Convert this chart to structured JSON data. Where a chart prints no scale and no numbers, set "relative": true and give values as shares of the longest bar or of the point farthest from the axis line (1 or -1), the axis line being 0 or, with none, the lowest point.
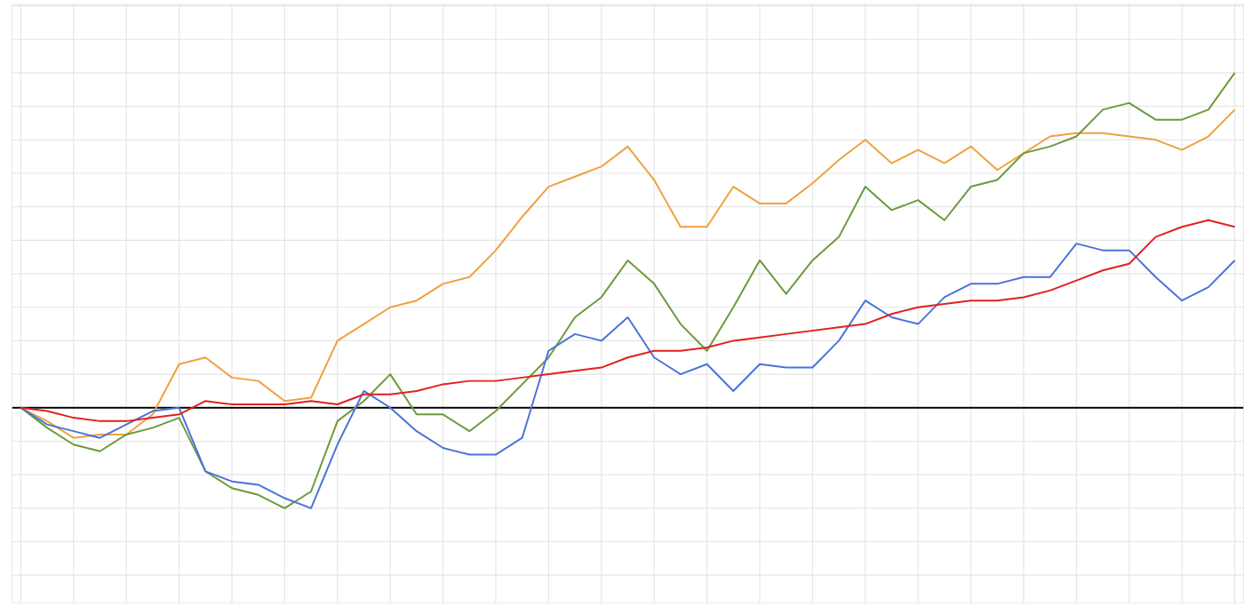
{
  "chart_data": {
    "type": "line",
    "relative": true,
    "grid": true,
    "marker": "none",
    "line_style": "solid",
    "categories": [
      null,
      null,
      null,
      null,
      null,
      null,
      null,
      null,
      null,
      null,
      null,
      null,
      null,
      null,
      null,
      null,
      null,
      null,
      null,
      null,
      null,
      null,
      null,
      null,
      null,
      null,
      null,
      null,
      null,
      null,
      null,
      null,
      null,
      null,
      null,
      null,
      null,
      null,
      null,
      null,
      null,
      null,
      null,
      null,
      null,
      null,
      null
    ],
    "series": [
      {
        "color": "#f0a040",
        "values": [
          0,
          -0.04,
          -0.09,
          -0.08,
          -0.08,
          -0.02,
          0.13,
          0.15,
          0.09,
          0.08,
          0.02,
          0.03,
          0.2,
          0.25,
          0.3,
          0.32,
          0.37,
          0.39,
          0.47,
          0.57,
          0.66,
          0.69,
          0.72,
          0.78,
          0.68,
          0.54,
          0.54,
          0.66,
          0.61,
          0.61,
          0.67,
          0.74,
          0.8,
          0.73,
          0.77,
          0.73,
          0.78,
          0.71,
          0.76,
          0.81,
          0.82,
          0.82,
          0.81,
          0.8,
          0.77,
          0.81,
          0.89
        ]
      },
      {
        "color": "#6a9a3a",
        "values": [
          0,
          -0.06,
          -0.11,
          -0.13,
          -0.08,
          -0.06,
          -0.03,
          -0.19,
          -0.24,
          -0.26,
          -0.3,
          -0.25,
          -0.04,
          0.02,
          0.1,
          -0.02,
          -0.02,
          -0.07,
          -0.01,
          0.07,
          0.15,
          0.27,
          0.33,
          0.44,
          0.37,
          0.25,
          0.17,
          0.3,
          0.44,
          0.34,
          0.44,
          0.51,
          0.66,
          0.59,
          0.62,
          0.56,
          0.66,
          0.68,
          0.76,
          0.78,
          0.81,
          0.89,
          0.91,
          0.86,
          0.86,
          0.89,
          1
        ]
      },
      {
        "color": "#4a72d8",
        "values": [
          0,
          -0.05,
          -0.07,
          -0.09,
          -0.05,
          -0.01,
          0,
          -0.19,
          -0.22,
          -0.23,
          -0.27,
          -0.3,
          -0.11,
          0.05,
          0,
          -0.07,
          -0.12,
          -0.14,
          -0.14,
          -0.09,
          0.17,
          0.22,
          0.2,
          0.27,
          0.15,
          0.1,
          0.13,
          0.05,
          0.13,
          0.12,
          0.12,
          0.2,
          0.32,
          0.27,
          0.25,
          0.33,
          0.37,
          0.37,
          0.39,
          0.39,
          0.49,
          0.47,
          0.47,
          0.39,
          0.32,
          0.36,
          0.44
        ]
      },
      {
        "color": "#e02020",
        "values": [
          0,
          -0.01,
          -0.03,
          -0.04,
          -0.04,
          -0.03,
          -0.02,
          0.02,
          0.01,
          0.01,
          0.01,
          0.02,
          0.01,
          0.04,
          0.04,
          0.05,
          0.07,
          0.08,
          0.08,
          0.09,
          0.1,
          0.11,
          0.12,
          0.15,
          0.17,
          0.17,
          0.18,
          0.2,
          0.21,
          0.22,
          0.23,
          0.24,
          0.25,
          0.28,
          0.3,
          0.31,
          0.32,
          0.32,
          0.33,
          0.35,
          0.38,
          0.41,
          0.43,
          0.51,
          0.54,
          0.56,
          0.54
        ]
      }
    ]
  }
}
